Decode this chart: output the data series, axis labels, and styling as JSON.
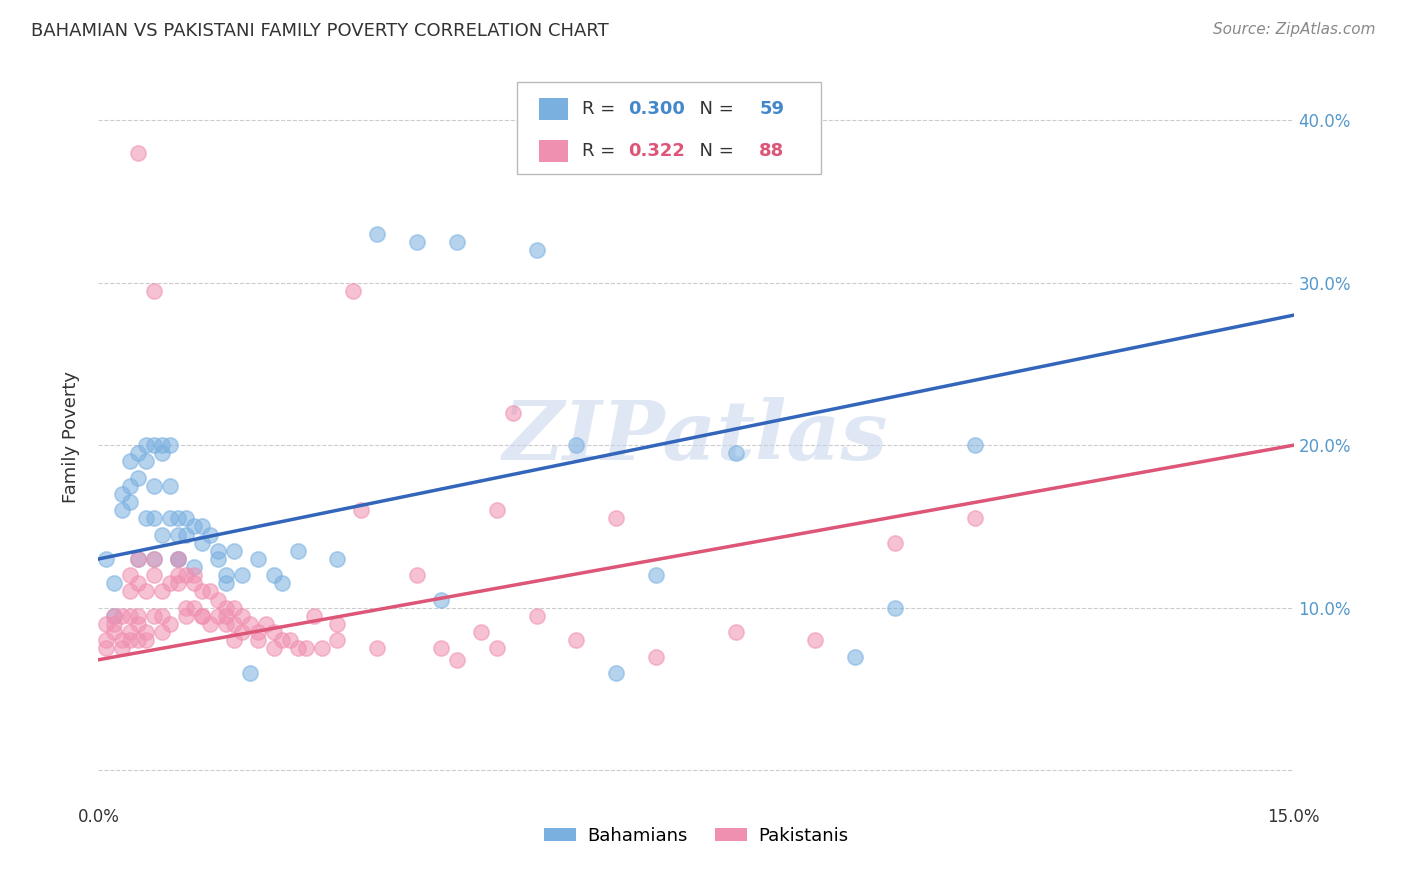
{
  "title": "BAHAMIAN VS PAKISTANI FAMILY POVERTY CORRELATION CHART",
  "source": "Source: ZipAtlas.com",
  "ylabel": "Family Poverty",
  "yticks": [
    0.0,
    0.1,
    0.2,
    0.3,
    0.4
  ],
  "ytick_labels": [
    "",
    "10.0%",
    "20.0%",
    "30.0%",
    "40.0%"
  ],
  "xlim": [
    0.0,
    0.15
  ],
  "ylim": [
    -0.02,
    0.43
  ],
  "watermark": "ZIPatlas",
  "bahamian_label": "Bahamians",
  "pakistani_label": "Pakistanis",
  "bahamian_color": "#7ab0e0",
  "pakistani_color": "#f090b0",
  "bahamian_line_color": "#3366bb",
  "pakistani_line_color": "#dd5577",
  "R_bahamian": 0.3,
  "N_bahamian": 59,
  "R_pakistani": 0.322,
  "N_pakistani": 88,
  "bah_intercept": 0.13,
  "bah_slope": 1.0,
  "pak_intercept": 0.068,
  "pak_slope": 0.88,
  "bahamian_scatter": [
    [
      0.001,
      0.13
    ],
    [
      0.002,
      0.095
    ],
    [
      0.002,
      0.115
    ],
    [
      0.003,
      0.17
    ],
    [
      0.003,
      0.16
    ],
    [
      0.004,
      0.19
    ],
    [
      0.004,
      0.175
    ],
    [
      0.004,
      0.165
    ],
    [
      0.005,
      0.195
    ],
    [
      0.005,
      0.18
    ],
    [
      0.005,
      0.13
    ],
    [
      0.006,
      0.2
    ],
    [
      0.006,
      0.19
    ],
    [
      0.006,
      0.155
    ],
    [
      0.007,
      0.13
    ],
    [
      0.007,
      0.2
    ],
    [
      0.007,
      0.175
    ],
    [
      0.007,
      0.155
    ],
    [
      0.008,
      0.195
    ],
    [
      0.008,
      0.2
    ],
    [
      0.008,
      0.145
    ],
    [
      0.009,
      0.2
    ],
    [
      0.009,
      0.175
    ],
    [
      0.009,
      0.155
    ],
    [
      0.01,
      0.13
    ],
    [
      0.01,
      0.155
    ],
    [
      0.01,
      0.145
    ],
    [
      0.01,
      0.13
    ],
    [
      0.011,
      0.145
    ],
    [
      0.011,
      0.155
    ],
    [
      0.012,
      0.15
    ],
    [
      0.012,
      0.125
    ],
    [
      0.013,
      0.15
    ],
    [
      0.013,
      0.14
    ],
    [
      0.014,
      0.145
    ],
    [
      0.015,
      0.135
    ],
    [
      0.015,
      0.13
    ],
    [
      0.016,
      0.115
    ],
    [
      0.016,
      0.12
    ],
    [
      0.017,
      0.135
    ],
    [
      0.018,
      0.12
    ],
    [
      0.019,
      0.06
    ],
    [
      0.02,
      0.13
    ],
    [
      0.022,
      0.12
    ],
    [
      0.023,
      0.115
    ],
    [
      0.025,
      0.135
    ],
    [
      0.03,
      0.13
    ],
    [
      0.035,
      0.33
    ],
    [
      0.04,
      0.325
    ],
    [
      0.043,
      0.105
    ],
    [
      0.045,
      0.325
    ],
    [
      0.055,
      0.32
    ],
    [
      0.06,
      0.2
    ],
    [
      0.065,
      0.06
    ],
    [
      0.07,
      0.12
    ],
    [
      0.08,
      0.195
    ],
    [
      0.095,
      0.07
    ],
    [
      0.1,
      0.1
    ],
    [
      0.11,
      0.2
    ]
  ],
  "pakistani_scatter": [
    [
      0.001,
      0.09
    ],
    [
      0.001,
      0.08
    ],
    [
      0.001,
      0.075
    ],
    [
      0.002,
      0.095
    ],
    [
      0.002,
      0.085
    ],
    [
      0.002,
      0.09
    ],
    [
      0.003,
      0.08
    ],
    [
      0.003,
      0.095
    ],
    [
      0.003,
      0.075
    ],
    [
      0.004,
      0.085
    ],
    [
      0.004,
      0.095
    ],
    [
      0.004,
      0.12
    ],
    [
      0.004,
      0.11
    ],
    [
      0.004,
      0.08
    ],
    [
      0.005,
      0.095
    ],
    [
      0.005,
      0.13
    ],
    [
      0.005,
      0.09
    ],
    [
      0.005,
      0.08
    ],
    [
      0.005,
      0.115
    ],
    [
      0.005,
      0.38
    ],
    [
      0.006,
      0.11
    ],
    [
      0.006,
      0.08
    ],
    [
      0.006,
      0.085
    ],
    [
      0.007,
      0.12
    ],
    [
      0.007,
      0.095
    ],
    [
      0.007,
      0.13
    ],
    [
      0.007,
      0.295
    ],
    [
      0.008,
      0.11
    ],
    [
      0.008,
      0.085
    ],
    [
      0.008,
      0.095
    ],
    [
      0.009,
      0.115
    ],
    [
      0.009,
      0.09
    ],
    [
      0.01,
      0.115
    ],
    [
      0.01,
      0.13
    ],
    [
      0.01,
      0.12
    ],
    [
      0.011,
      0.12
    ],
    [
      0.011,
      0.1
    ],
    [
      0.011,
      0.095
    ],
    [
      0.012,
      0.115
    ],
    [
      0.012,
      0.12
    ],
    [
      0.012,
      0.1
    ],
    [
      0.013,
      0.11
    ],
    [
      0.013,
      0.095
    ],
    [
      0.013,
      0.095
    ],
    [
      0.014,
      0.11
    ],
    [
      0.014,
      0.09
    ],
    [
      0.015,
      0.095
    ],
    [
      0.015,
      0.105
    ],
    [
      0.016,
      0.1
    ],
    [
      0.016,
      0.095
    ],
    [
      0.016,
      0.09
    ],
    [
      0.017,
      0.1
    ],
    [
      0.017,
      0.09
    ],
    [
      0.017,
      0.08
    ],
    [
      0.018,
      0.095
    ],
    [
      0.018,
      0.085
    ],
    [
      0.019,
      0.09
    ],
    [
      0.02,
      0.08
    ],
    [
      0.02,
      0.085
    ],
    [
      0.021,
      0.09
    ],
    [
      0.022,
      0.075
    ],
    [
      0.022,
      0.085
    ],
    [
      0.023,
      0.08
    ],
    [
      0.024,
      0.08
    ],
    [
      0.025,
      0.075
    ],
    [
      0.026,
      0.075
    ],
    [
      0.027,
      0.095
    ],
    [
      0.028,
      0.075
    ],
    [
      0.03,
      0.08
    ],
    [
      0.03,
      0.09
    ],
    [
      0.032,
      0.295
    ],
    [
      0.033,
      0.16
    ],
    [
      0.035,
      0.075
    ],
    [
      0.04,
      0.12
    ],
    [
      0.043,
      0.075
    ],
    [
      0.045,
      0.068
    ],
    [
      0.048,
      0.085
    ],
    [
      0.05,
      0.075
    ],
    [
      0.05,
      0.16
    ],
    [
      0.052,
      0.22
    ],
    [
      0.055,
      0.095
    ],
    [
      0.06,
      0.08
    ],
    [
      0.065,
      0.155
    ],
    [
      0.07,
      0.07
    ],
    [
      0.08,
      0.085
    ],
    [
      0.09,
      0.08
    ],
    [
      0.1,
      0.14
    ],
    [
      0.11,
      0.155
    ]
  ],
  "grid_color": "#cccccc",
  "background_color": "#ffffff"
}
